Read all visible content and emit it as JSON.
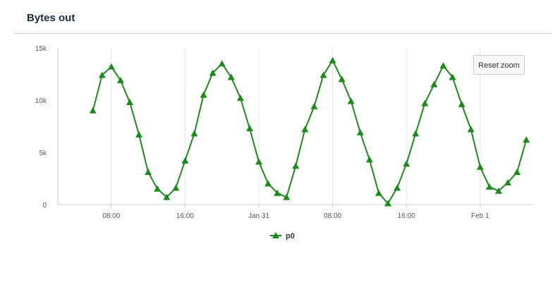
{
  "panel": {
    "title": "Bytes out"
  },
  "toolbar": {
    "reset_zoom_label": "Reset zoom"
  },
  "colors": {
    "series": "#1e8a1e",
    "grid": "#e6e6e6",
    "axis": "#cccccc"
  },
  "chart_data": {
    "type": "line",
    "title": "",
    "xlabel": "",
    "ylabel": "",
    "x_tick_labels": [
      "08:00",
      "16:00",
      "Jan 31",
      "08:00",
      "16:00",
      "Feb 1"
    ],
    "x_tick_hours": [
      8,
      16,
      24,
      32,
      40,
      48
    ],
    "xlim_hours": [
      2.2,
      53.6
    ],
    "y_ticks": [
      0,
      5000,
      10000,
      15000
    ],
    "y_tick_labels": [
      "0",
      "5k",
      "10k",
      "15k"
    ],
    "ylim": [
      0,
      15000
    ],
    "grid": "vertical",
    "legend": "bottom-center",
    "marker": "triangle",
    "series": [
      {
        "name": "p0",
        "color": "#1e8a1e",
        "x_hours": [
          6,
          7,
          8,
          9,
          10,
          11,
          12,
          13,
          14,
          15,
          16,
          17,
          18,
          19,
          20,
          21,
          22,
          23,
          24,
          25,
          26,
          27,
          28,
          29,
          30,
          31,
          32,
          33,
          34,
          35,
          36,
          37,
          38,
          39,
          40,
          41,
          42,
          43,
          44,
          45,
          46,
          47,
          48,
          49,
          50,
          51,
          52,
          53
        ],
        "values": [
          9000,
          12400,
          13200,
          11900,
          9800,
          6700,
          3100,
          1500,
          700,
          1600,
          4200,
          6800,
          10500,
          12600,
          13500,
          12200,
          10200,
          7300,
          4100,
          2000,
          1100,
          700,
          3700,
          7200,
          9400,
          12400,
          13800,
          12000,
          9900,
          6900,
          4300,
          1100,
          100,
          1600,
          3900,
          6800,
          9700,
          11500,
          13300,
          12200,
          9600,
          7200,
          3600,
          1700,
          1300,
          2100,
          3100,
          6200
        ]
      }
    ]
  }
}
